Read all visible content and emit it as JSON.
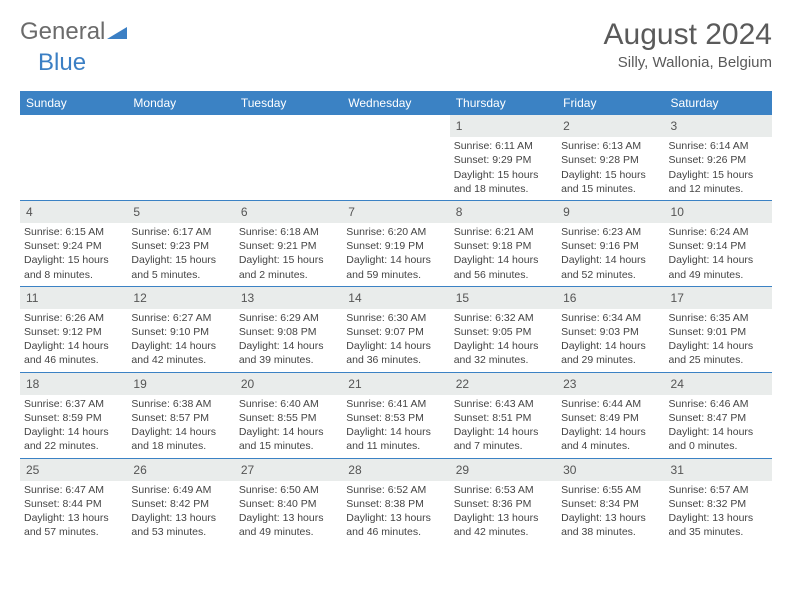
{
  "logo": {
    "text1": "General",
    "text2": "Blue"
  },
  "title": {
    "month": "August 2024",
    "location": "Silly, Wallonia, Belgium"
  },
  "dayNames": [
    "Sunday",
    "Monday",
    "Tuesday",
    "Wednesday",
    "Thursday",
    "Friday",
    "Saturday"
  ],
  "colors": {
    "header_bg": "#3b82c4",
    "header_text": "#ffffff",
    "daynum_bg": "#e9eceb",
    "border": "#3b82c4",
    "text": "#444444"
  },
  "weeks": [
    [
      {
        "n": "",
        "empty": true
      },
      {
        "n": "",
        "empty": true
      },
      {
        "n": "",
        "empty": true
      },
      {
        "n": "",
        "empty": true
      },
      {
        "n": "1",
        "sunrise": "6:11 AM",
        "sunset": "9:29 PM",
        "daylight": "15 hours and 18 minutes."
      },
      {
        "n": "2",
        "sunrise": "6:13 AM",
        "sunset": "9:28 PM",
        "daylight": "15 hours and 15 minutes."
      },
      {
        "n": "3",
        "sunrise": "6:14 AM",
        "sunset": "9:26 PM",
        "daylight": "15 hours and 12 minutes."
      }
    ],
    [
      {
        "n": "4",
        "sunrise": "6:15 AM",
        "sunset": "9:24 PM",
        "daylight": "15 hours and 8 minutes."
      },
      {
        "n": "5",
        "sunrise": "6:17 AM",
        "sunset": "9:23 PM",
        "daylight": "15 hours and 5 minutes."
      },
      {
        "n": "6",
        "sunrise": "6:18 AM",
        "sunset": "9:21 PM",
        "daylight": "15 hours and 2 minutes."
      },
      {
        "n": "7",
        "sunrise": "6:20 AM",
        "sunset": "9:19 PM",
        "daylight": "14 hours and 59 minutes."
      },
      {
        "n": "8",
        "sunrise": "6:21 AM",
        "sunset": "9:18 PM",
        "daylight": "14 hours and 56 minutes."
      },
      {
        "n": "9",
        "sunrise": "6:23 AM",
        "sunset": "9:16 PM",
        "daylight": "14 hours and 52 minutes."
      },
      {
        "n": "10",
        "sunrise": "6:24 AM",
        "sunset": "9:14 PM",
        "daylight": "14 hours and 49 minutes."
      }
    ],
    [
      {
        "n": "11",
        "sunrise": "6:26 AM",
        "sunset": "9:12 PM",
        "daylight": "14 hours and 46 minutes."
      },
      {
        "n": "12",
        "sunrise": "6:27 AM",
        "sunset": "9:10 PM",
        "daylight": "14 hours and 42 minutes."
      },
      {
        "n": "13",
        "sunrise": "6:29 AM",
        "sunset": "9:08 PM",
        "daylight": "14 hours and 39 minutes."
      },
      {
        "n": "14",
        "sunrise": "6:30 AM",
        "sunset": "9:07 PM",
        "daylight": "14 hours and 36 minutes."
      },
      {
        "n": "15",
        "sunrise": "6:32 AM",
        "sunset": "9:05 PM",
        "daylight": "14 hours and 32 minutes."
      },
      {
        "n": "16",
        "sunrise": "6:34 AM",
        "sunset": "9:03 PM",
        "daylight": "14 hours and 29 minutes."
      },
      {
        "n": "17",
        "sunrise": "6:35 AM",
        "sunset": "9:01 PM",
        "daylight": "14 hours and 25 minutes."
      }
    ],
    [
      {
        "n": "18",
        "sunrise": "6:37 AM",
        "sunset": "8:59 PM",
        "daylight": "14 hours and 22 minutes."
      },
      {
        "n": "19",
        "sunrise": "6:38 AM",
        "sunset": "8:57 PM",
        "daylight": "14 hours and 18 minutes."
      },
      {
        "n": "20",
        "sunrise": "6:40 AM",
        "sunset": "8:55 PM",
        "daylight": "14 hours and 15 minutes."
      },
      {
        "n": "21",
        "sunrise": "6:41 AM",
        "sunset": "8:53 PM",
        "daylight": "14 hours and 11 minutes."
      },
      {
        "n": "22",
        "sunrise": "6:43 AM",
        "sunset": "8:51 PM",
        "daylight": "14 hours and 7 minutes."
      },
      {
        "n": "23",
        "sunrise": "6:44 AM",
        "sunset": "8:49 PM",
        "daylight": "14 hours and 4 minutes."
      },
      {
        "n": "24",
        "sunrise": "6:46 AM",
        "sunset": "8:47 PM",
        "daylight": "14 hours and 0 minutes."
      }
    ],
    [
      {
        "n": "25",
        "sunrise": "6:47 AM",
        "sunset": "8:44 PM",
        "daylight": "13 hours and 57 minutes."
      },
      {
        "n": "26",
        "sunrise": "6:49 AM",
        "sunset": "8:42 PM",
        "daylight": "13 hours and 53 minutes."
      },
      {
        "n": "27",
        "sunrise": "6:50 AM",
        "sunset": "8:40 PM",
        "daylight": "13 hours and 49 minutes."
      },
      {
        "n": "28",
        "sunrise": "6:52 AM",
        "sunset": "8:38 PM",
        "daylight": "13 hours and 46 minutes."
      },
      {
        "n": "29",
        "sunrise": "6:53 AM",
        "sunset": "8:36 PM",
        "daylight": "13 hours and 42 minutes."
      },
      {
        "n": "30",
        "sunrise": "6:55 AM",
        "sunset": "8:34 PM",
        "daylight": "13 hours and 38 minutes."
      },
      {
        "n": "31",
        "sunrise": "6:57 AM",
        "sunset": "8:32 PM",
        "daylight": "13 hours and 35 minutes."
      }
    ]
  ],
  "labels": {
    "sunrise": "Sunrise:",
    "sunset": "Sunset:",
    "daylight": "Daylight:"
  }
}
